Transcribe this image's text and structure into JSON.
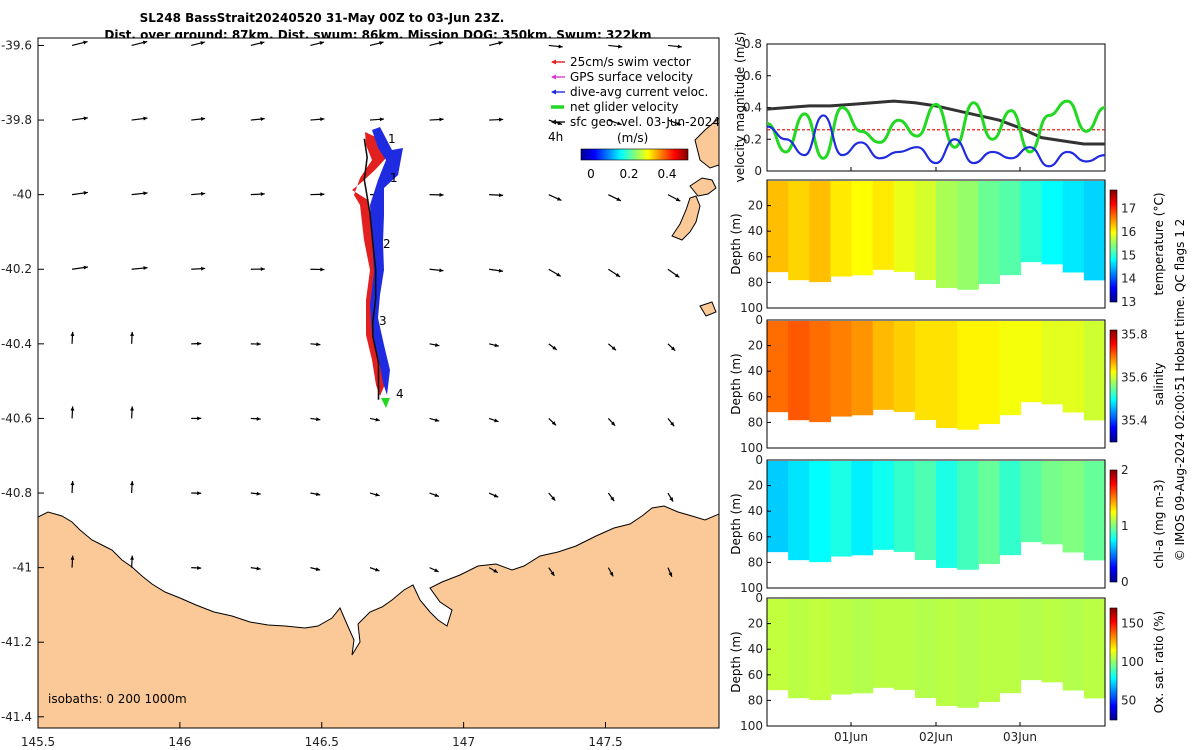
{
  "title": {
    "line1": "SL248 BassStrait20240520 31-May 00Z to 03-Jun 23Z.",
    "line2": "Dist. over ground: 87km. Dist. swum: 86km. Mission DOG: 350km. Swum: 322km"
  },
  "map": {
    "x_ticks": [
      "145.5",
      "146",
      "146.5",
      "147",
      "147.5"
    ],
    "y_ticks": [
      "-39.6",
      "-39.8",
      "-40",
      "-40.2",
      "-40.4",
      "-40.6",
      "-40.8",
      "-41",
      "-41.2",
      "-41.4"
    ],
    "xlim": [
      145.5,
      147.9
    ],
    "ylim": [
      -41.43,
      -39.58
    ],
    "legend": [
      {
        "label": "25cm/s swim vector",
        "color": "#e32020"
      },
      {
        "label": "GPS surface velocity",
        "color": "#d23cd2"
      },
      {
        "label": "dive-avg current veloc.",
        "color": "#1f2be0"
      },
      {
        "label": "net glider velocity",
        "color": "#22d822"
      },
      {
        "label": "sfc geo. vel. 03-Jun-2024",
        "color": "#111111"
      }
    ],
    "duration_label": "4h",
    "colorbar_title": "(m/s)",
    "colorbar_ticks": [
      "0",
      "0.2",
      "0.4"
    ],
    "day_markers": [
      "1",
      "1",
      "2",
      "3",
      "4"
    ],
    "isobaths_label": "isobaths: 0   200  1000m",
    "land_color": "#fbc998",
    "track_points": [
      [
        146.65,
        -39.85
      ],
      [
        146.66,
        -39.9
      ],
      [
        146.65,
        -39.96
      ],
      [
        146.67,
        -40.05
      ],
      [
        146.68,
        -40.13
      ],
      [
        146.69,
        -40.2
      ],
      [
        146.69,
        -40.28
      ],
      [
        146.68,
        -40.34
      ],
      [
        146.68,
        -40.38
      ],
      [
        146.7,
        -40.45
      ],
      [
        146.7,
        -40.52
      ],
      [
        146.7,
        -40.55
      ]
    ],
    "arrow_grid": {
      "lon": [
        145.62,
        145.83,
        146.04,
        146.25,
        146.46,
        146.67,
        146.88,
        147.09,
        147.3,
        147.51,
        147.72
      ],
      "lat": [
        -39.6,
        -39.8,
        -40.0,
        -40.2,
        -40.4,
        -40.6,
        -40.8,
        -41.0
      ]
    }
  },
  "velocity_panel": {
    "ylabel": "velocity magnitude (m/s)",
    "y_ticks": [
      "0",
      "0.2",
      "0.4",
      "0.6",
      "0.8"
    ],
    "ylim": [
      0,
      0.8
    ],
    "series": [
      {
        "name": "sfc geo. vel.",
        "color": "#333333",
        "values": [
          0.39,
          0.4,
          0.41,
          0.41,
          0.42,
          0.43,
          0.44,
          0.43,
          0.41,
          0.38,
          0.35,
          0.32,
          0.27,
          0.21,
          0.19,
          0.17,
          0.17
        ]
      },
      {
        "name": "swim vector",
        "color": "#e32020",
        "values": [
          0.26,
          0.26,
          0.26,
          0.26,
          0.26,
          0.26,
          0.26,
          0.26,
          0.26,
          0.26,
          0.26,
          0.26,
          0.26,
          0.26,
          0.26,
          0.26,
          0.26
        ]
      },
      {
        "name": "net glider velocity",
        "color": "#22d822",
        "values": [
          0.3,
          0.12,
          0.36,
          0.08,
          0.4,
          0.25,
          0.18,
          0.32,
          0.22,
          0.42,
          0.15,
          0.43,
          0.2,
          0.38,
          0.12,
          0.35,
          0.44,
          0.25,
          0.4
        ]
      },
      {
        "name": "dive-avg current",
        "color": "#1f2be0",
        "values": [
          0.28,
          0.2,
          0.1,
          0.35,
          0.1,
          0.18,
          0.08,
          0.12,
          0.15,
          0.05,
          0.2,
          0.05,
          0.12,
          0.08,
          0.15,
          0.03,
          0.12,
          0.06,
          0.1
        ]
      }
    ]
  },
  "section_panels": [
    {
      "name": "temperature",
      "ylabel": "Depth (m)",
      "clabel": "temperature (°C)",
      "cticks": [
        "17",
        "16",
        "15",
        "14",
        "13"
      ],
      "clim": [
        13,
        17.8
      ],
      "values": [
        16.3,
        16.2,
        16.3,
        16.1,
        16.0,
        16.1,
        15.9,
        15.8,
        15.6,
        15.5,
        15.3,
        15.2,
        15.0,
        14.8,
        14.7,
        14.6
      ]
    },
    {
      "name": "salinity",
      "ylabel": "Depth (m)",
      "clabel": "salinity",
      "cticks": [
        "35.8",
        "35.6",
        "35.4"
      ],
      "clim": [
        35.3,
        35.82
      ],
      "values": [
        35.7,
        35.71,
        35.7,
        35.69,
        35.68,
        35.66,
        35.65,
        35.64,
        35.64,
        35.63,
        35.63,
        35.62,
        35.62,
        35.61,
        35.61,
        35.6
      ]
    },
    {
      "name": "chl-a",
      "ylabel": "Depth (m)",
      "clabel": "chl-a (mg m-3)",
      "cticks": [
        "2",
        "1",
        "0"
      ],
      "clim": [
        0,
        2
      ],
      "values": [
        0.65,
        0.7,
        0.75,
        0.8,
        0.72,
        0.78,
        0.85,
        0.9,
        0.8,
        0.88,
        0.95,
        0.85,
        0.92,
        0.98,
        1.0,
        0.95
      ]
    },
    {
      "name": "oxygen",
      "ylabel": "Depth (m)",
      "clabel": "Ox. sat. ratio (%)",
      "cticks": [
        "150",
        "100",
        "50"
      ],
      "clim": [
        25,
        170
      ],
      "values": [
        107,
        106,
        107,
        106,
        105,
        106,
        106,
        105,
        106,
        105,
        106,
        106,
        105,
        106,
        105,
        106
      ]
    }
  ],
  "depth_ticks": [
    "0",
    "20",
    "40",
    "60",
    "80",
    "100"
  ],
  "x_date_ticks": [
    "01Jun",
    "02Jun",
    "03Jun"
  ],
  "side_note": "© IMOS 09-Aug-2024 02:00:51 Hobart time. QC flags 1  2"
}
